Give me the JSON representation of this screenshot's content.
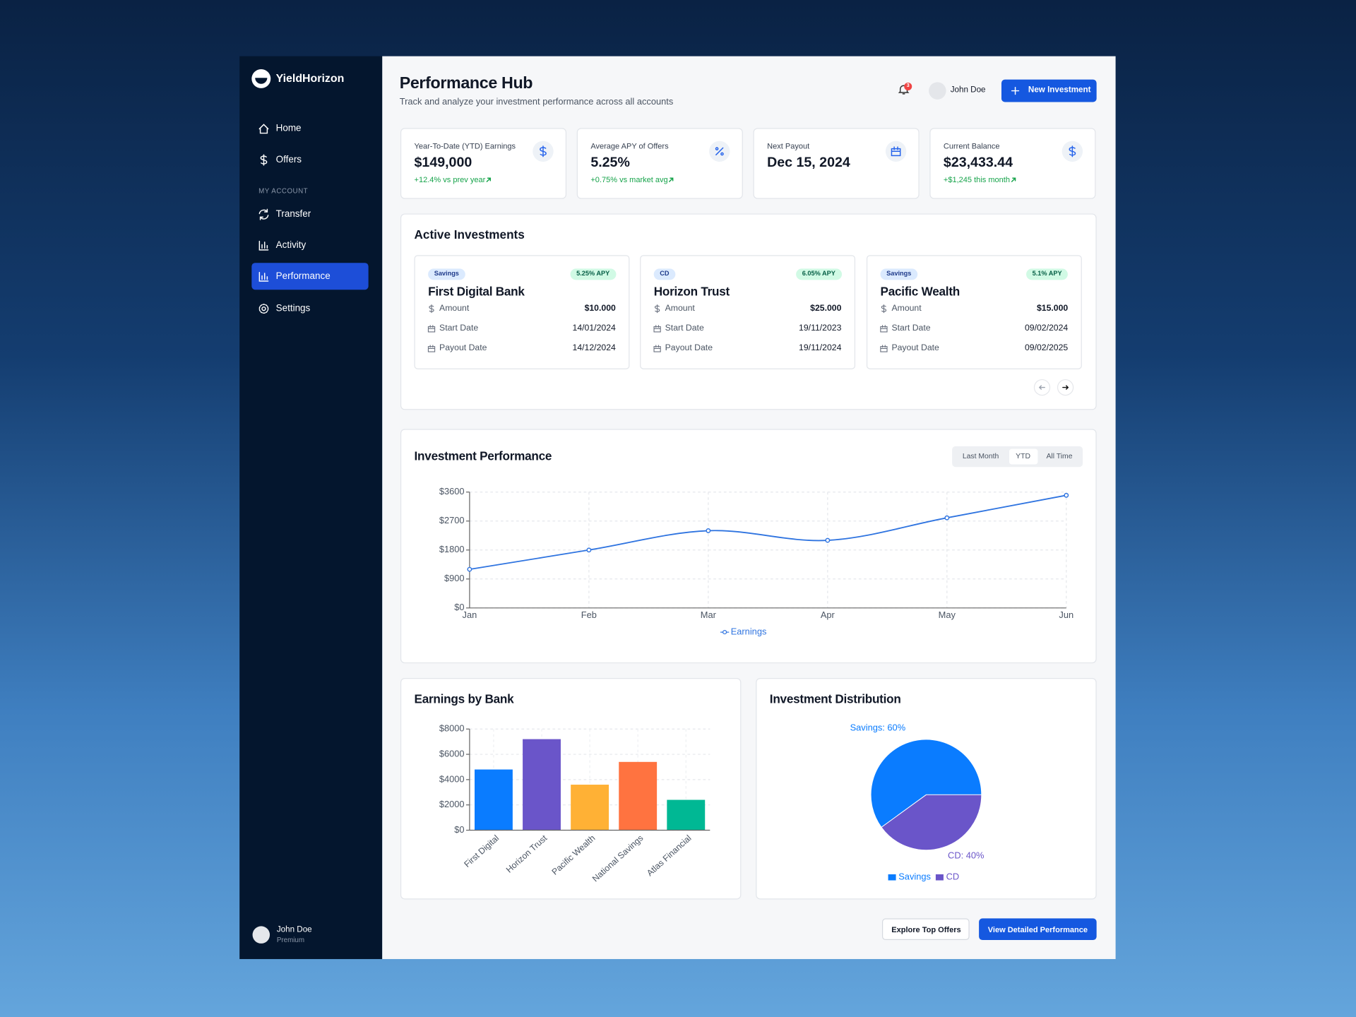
{
  "sidebar": {
    "brand": "YieldHorizon",
    "nav": [
      "Home",
      "Offers"
    ],
    "section": "MY ACCOUNT",
    "account_nav": [
      "Transfer",
      "Activity",
      "Performance",
      "Settings"
    ],
    "active": "Performance",
    "user": {
      "name": "John Doe",
      "plan": "Premium"
    }
  },
  "header": {
    "title": "Performance Hub",
    "subtitle": "Track and analyze your investment performance across all accounts",
    "notifications": "3",
    "user": "John Doe",
    "button": "New Investment"
  },
  "stats": [
    {
      "label": "Year-To-Date (YTD) Earnings",
      "value": "$149,000",
      "change": "+12.4% vs prev year"
    },
    {
      "label": "Average APY of Offers",
      "value": "5.25%",
      "change": "+0.75% vs market avg"
    },
    {
      "label": "Next Payout",
      "value": "Dec 15, 2024"
    },
    {
      "label": "Current Balance",
      "value": "$23,433.44",
      "change": "+$1,245 this month"
    }
  ],
  "investments": {
    "title": "Active Investments",
    "fields": [
      "Amount",
      "Start Date",
      "Payout Date"
    ],
    "cards": [
      {
        "tag": "Savings",
        "apy": "5.25% APY",
        "name": "First Digital Bank",
        "amount": "$10.000",
        "start": "14/01/2024",
        "payout": "14/12/2024"
      },
      {
        "tag": "CD",
        "apy": "6.05% APY",
        "name": "Horizon Trust",
        "amount": "$25.000",
        "start": "19/11/2023",
        "payout": "19/11/2024"
      },
      {
        "tag": "Savings",
        "apy": "5.1% APY",
        "name": "Pacific Wealth",
        "amount": "$15.000",
        "start": "09/02/2024",
        "payout": "09/02/2025"
      }
    ]
  },
  "performance_tabs": {
    "options": [
      "Last Month",
      "YTD",
      "All Time"
    ],
    "active": "YTD"
  },
  "chart_data": [
    {
      "type": "line",
      "title": "Investment Performance",
      "categories": [
        "Jan",
        "Feb",
        "Mar",
        "Apr",
        "May",
        "Jun"
      ],
      "series": [
        {
          "name": "Earnings",
          "color": "#2f74e0",
          "values": [
            1200,
            1800,
            2400,
            2100,
            2800,
            3500
          ]
        }
      ],
      "ylim": [
        0,
        3600
      ],
      "yticks": [
        {
          "value": 0,
          "label": "$0"
        },
        {
          "value": 900,
          "label": "$900"
        },
        {
          "value": 1800,
          "label": "$1800"
        },
        {
          "value": 2700,
          "label": "$2700"
        },
        {
          "value": 3600,
          "label": "$3600"
        }
      ],
      "grid": true
    },
    {
      "type": "bar",
      "title": "Earnings by Bank",
      "categories": [
        "First Digital",
        "Horizon Trust",
        "Pacific Wealth",
        "National Savings",
        "Atlas Financial"
      ],
      "values": [
        4800,
        7200,
        3600,
        5400,
        2400
      ],
      "colors": [
        "#0a7cff",
        "#6a55c9",
        "#ffb135",
        "#ff7340",
        "#00b894"
      ],
      "ylim": [
        0,
        8000
      ],
      "yticks": [
        {
          "value": 0,
          "label": "$0"
        },
        {
          "value": 2000,
          "label": "$2000"
        },
        {
          "value": 4000,
          "label": "$4000"
        },
        {
          "value": 6000,
          "label": "$6000"
        },
        {
          "value": 8000,
          "label": "$8000"
        }
      ],
      "grid": true
    },
    {
      "type": "pie",
      "title": "Investment Distribution",
      "categories": [
        "Savings",
        "CD"
      ],
      "values": [
        60,
        40
      ],
      "value_labels": [
        "Savings: 60%",
        "CD: 40%"
      ],
      "colors": [
        "#0a7cff",
        "#6a55c9"
      ]
    }
  ],
  "actions": [
    "Explore Top Offers",
    "View Detailed Performance"
  ]
}
